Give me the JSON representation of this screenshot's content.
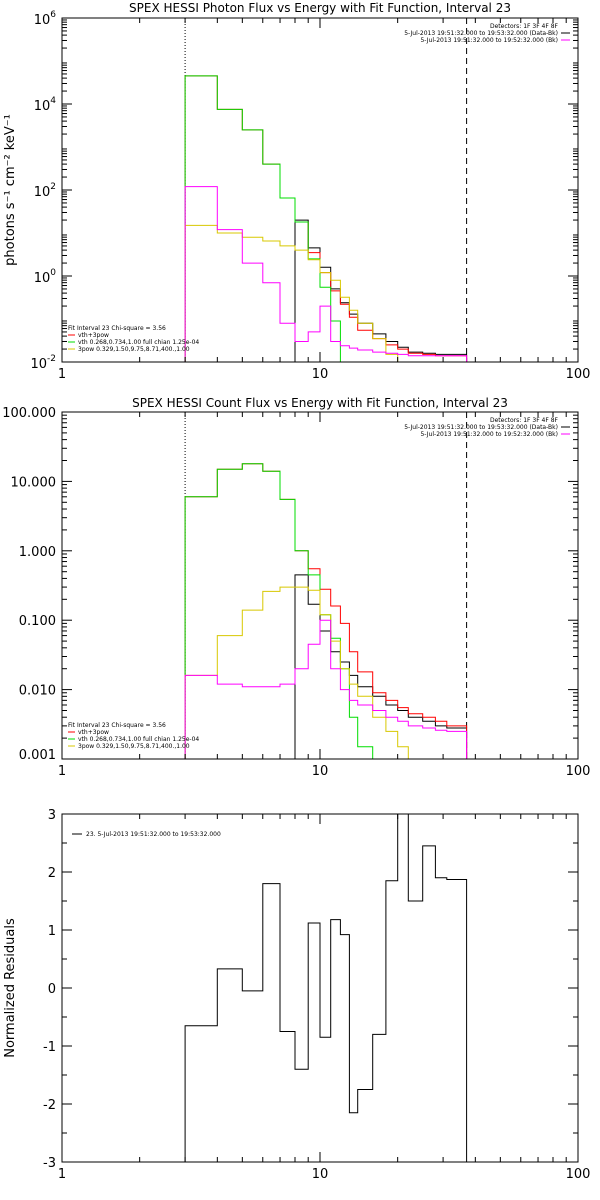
{
  "chart_data": [
    {
      "type": "line",
      "title": "SPEX HESSI Photon Flux vs Energy with Fit Function, Interval 23",
      "xlabel": "",
      "ylabel": "photons s⁻¹ cm⁻² keV⁻¹",
      "xscale": "log",
      "yscale": "log",
      "xlim": [
        1,
        100
      ],
      "ylim": [
        0.01,
        1000000
      ],
      "x_ticks": [
        {
          "v": 1,
          "label": "1"
        },
        {
          "v": 10,
          "label": "10"
        },
        {
          "v": 100,
          "label": "100"
        }
      ],
      "y_ticks": [
        {
          "v": 0.01,
          "label": "10",
          "sup": "-2"
        },
        {
          "v": 1,
          "label": "10",
          "sup": "0"
        },
        {
          "v": 100,
          "label": "10",
          "sup": "2"
        },
        {
          "v": 10000,
          "label": "10",
          "sup": "4"
        },
        {
          "v": 1000000,
          "label": "10",
          "sup": "6"
        }
      ],
      "vlines": [
        {
          "x": 3.0,
          "style": "dotted"
        },
        {
          "x": 37.0,
          "style": "dashed"
        }
      ],
      "bin_edges": [
        3.0,
        4.0,
        5.0,
        6.0,
        7.0,
        8.0,
        9.0,
        10.0,
        11.0,
        12.0,
        13.0,
        14.0,
        16.0,
        18.0,
        20.0,
        22.0,
        25.0,
        28.0,
        31.0,
        37.0
      ],
      "series": [
        {
          "name": "",
          "color": "#000000",
          "values": [
            0.01,
            0.01,
            0.01,
            0.01,
            0.01,
            20,
            4.5,
            1.6,
            0.5,
            0.24,
            0.13,
            0.08,
            0.045,
            0.03,
            0.022,
            0.017,
            0.016,
            0.015,
            0.015
          ]
        },
        {
          "name": "vth+3pow",
          "color": "#ff0000",
          "values": [
            45000,
            7500,
            2500,
            400,
            65,
            18,
            3.5,
            1.2,
            0.45,
            0.22,
            0.11,
            0.055,
            0.035,
            0.025,
            0.02,
            0.016,
            0.015,
            0.014,
            0.014
          ]
        },
        {
          "name": "vth 0.268,0.734,1.00 full chian 1.25e-04",
          "color": "#00dd00",
          "values": [
            45000,
            7500,
            2500,
            400,
            65,
            18,
            2.5,
            0.55,
            0.09,
            0.01,
            0.001,
            null,
            null,
            null,
            null,
            null,
            null,
            null,
            null
          ]
        },
        {
          "name": "3pow 0.329,1.50,9.75,8.71,400.,1.00",
          "color": "#d8c800",
          "values": [
            15,
            10,
            8,
            6.5,
            5.0,
            4.0,
            2.4,
            1.2,
            0.8,
            0.32,
            0.16,
            0.08,
            0.035,
            0.015,
            0.01,
            0.005,
            null,
            null,
            null
          ]
        },
        {
          "name": "",
          "color": "#ff00ff",
          "values": [
            120,
            12,
            2,
            0.7,
            0.08,
            0.03,
            0.05,
            0.2,
            0.03,
            0.024,
            0.021,
            0.019,
            0.017,
            0.016,
            0.015,
            0.014,
            0.014,
            0.014,
            0.014
          ]
        }
      ],
      "legend": {
        "placement": "top-right",
        "header": "Detectors: 1F 3F 4F 8F",
        "rows": [
          {
            "text": "5-Jul-2013 19:51:32.000 to 19:53:32.000 (Data-Bk)",
            "color": "#000000"
          },
          {
            "text": "5-Jul-2013 19:51:32.000 to 19:52:32.000 (Bk)",
            "color": "#ff00ff"
          }
        ]
      },
      "fit_legend": {
        "placement": "bottom-left",
        "header": "Fit Interval 23   Chi-square = 3.56",
        "rows": [
          {
            "text": "vth+3pow",
            "color": "#ff0000"
          },
          {
            "text": "vth 0.268,0.734,1.00 full chian 1.25e-04",
            "color": "#00dd00"
          },
          {
            "text": "3pow 0.329,1.50,9.75,8.71,400.,1.00",
            "color": "#d8c800"
          }
        ]
      }
    },
    {
      "type": "line",
      "title": "SPEX HESSI Count Flux vs Energy with Fit Function, Interval 23",
      "xlabel": "",
      "ylabel": "",
      "xscale": "log",
      "yscale": "log",
      "xlim": [
        1,
        100
      ],
      "ylim": [
        0.001,
        100
      ],
      "x_ticks": [
        {
          "v": 1,
          "label": "1"
        },
        {
          "v": 10,
          "label": "10"
        },
        {
          "v": 100,
          "label": "100"
        }
      ],
      "y_ticks": [
        {
          "v": 0.001,
          "label": "0.001"
        },
        {
          "v": 0.01,
          "label": "0.010"
        },
        {
          "v": 0.1,
          "label": "0.100"
        },
        {
          "v": 1,
          "label": "1.000"
        },
        {
          "v": 10,
          "label": "10.000"
        },
        {
          "v": 100,
          "label": "100.000"
        }
      ],
      "vlines": [
        {
          "x": 3.0,
          "style": "dotted"
        },
        {
          "x": 37.0,
          "style": "dashed"
        }
      ],
      "bin_edges": [
        3.0,
        4.0,
        5.0,
        6.0,
        7.0,
        8.0,
        9.0,
        10.0,
        11.0,
        12.0,
        13.0,
        14.0,
        16.0,
        18.0,
        20.0,
        22.0,
        25.0,
        28.0,
        31.0,
        37.0
      ],
      "series": [
        {
          "name": "",
          "color": "#000000",
          "values": [
            0.001,
            0.001,
            0.001,
            0.001,
            0.001,
            0.45,
            0.17,
            0.07,
            0.035,
            0.025,
            0.016,
            0.011,
            0.008,
            0.006,
            0.005,
            0.004,
            0.0035,
            0.003,
            0.0028
          ]
        },
        {
          "name": "vth+3pow",
          "color": "#ff0000",
          "values": [
            6,
            15,
            18,
            14,
            5.5,
            1.0,
            0.55,
            0.28,
            0.16,
            0.09,
            0.035,
            0.018,
            0.009,
            0.007,
            0.0055,
            0.0045,
            0.004,
            0.0035,
            0.003
          ]
        },
        {
          "name": "vth 0.268,0.734,1.00 full chian 1.25e-04",
          "color": "#00dd00",
          "values": [
            6,
            15,
            18,
            14,
            5.5,
            1.0,
            0.45,
            0.12,
            0.055,
            0.02,
            0.004,
            0.0015,
            null,
            null,
            null,
            null,
            null,
            null,
            null
          ]
        },
        {
          "name": "3pow 0.329,1.50,9.75,8.71,400.,1.00",
          "color": "#d8c800",
          "values": [
            0.016,
            0.06,
            0.14,
            0.26,
            0.3,
            0.3,
            0.27,
            0.12,
            0.05,
            0.02,
            0.012,
            0.008,
            0.004,
            0.0025,
            0.0015,
            0.001,
            null,
            null,
            null
          ]
        },
        {
          "name": "",
          "color": "#ff00ff",
          "values": [
            0.016,
            0.012,
            0.011,
            0.011,
            0.012,
            0.02,
            0.045,
            0.1,
            0.02,
            0.01,
            0.007,
            0.006,
            0.005,
            0.004,
            0.0035,
            0.003,
            0.0028,
            0.0026,
            0.0025
          ]
        }
      ],
      "legend": {
        "placement": "top-right",
        "header": "Detectors: 1F 3F 4F 8F",
        "rows": [
          {
            "text": "5-Jul-2013 19:51:32.000 to 19:53:32.000 (Data-Bk)",
            "color": "#000000"
          },
          {
            "text": "5-Jul-2013 19:51:32.000 to 19:52:32.000 (Bk)",
            "color": "#ff00ff"
          }
        ]
      },
      "fit_legend": {
        "placement": "bottom-left",
        "header": "Fit Interval 23   Chi-square = 3.56",
        "rows": [
          {
            "text": "vth+3pow",
            "color": "#ff0000"
          },
          {
            "text": "vth 0.268,0.734,1.00 full chian 1.25e-04",
            "color": "#00dd00"
          },
          {
            "text": "3pow 0.329,1.50,9.75,8.71,400.,1.00",
            "color": "#d8c800"
          }
        ]
      }
    },
    {
      "type": "line",
      "title": "",
      "xlabel": "",
      "ylabel": "Normalized Residuals",
      "xscale": "log",
      "yscale": "linear",
      "xlim": [
        1,
        100
      ],
      "ylim": [
        -3,
        3
      ],
      "x_ticks": [
        {
          "v": 1,
          "label": "1"
        },
        {
          "v": 10,
          "label": "10"
        },
        {
          "v": 100,
          "label": "100"
        }
      ],
      "y_ticks": [
        {
          "v": -3,
          "label": "-3"
        },
        {
          "v": -2,
          "label": "-2"
        },
        {
          "v": -1,
          "label": "-1"
        },
        {
          "v": 0,
          "label": "0"
        },
        {
          "v": 1,
          "label": "1"
        },
        {
          "v": 2,
          "label": "2"
        },
        {
          "v": 3,
          "label": "3"
        }
      ],
      "vlines": [],
      "bin_edges": [
        3.0,
        4.0,
        5.0,
        6.0,
        7.0,
        8.0,
        9.0,
        10.0,
        11.0,
        12.0,
        13.0,
        14.0,
        16.0,
        18.0,
        20.0,
        22.0,
        25.0,
        28.0,
        31.0,
        37.0
      ],
      "series": [
        {
          "name": "23.  5-Jul-2013 19:51:32.000 to 19:53:32.000",
          "color": "#000000",
          "values": [
            -0.65,
            0.33,
            -0.05,
            1.8,
            -0.75,
            -1.4,
            1.12,
            -0.85,
            1.18,
            0.92,
            -2.15,
            -1.75,
            -0.8,
            1.85,
            3.0,
            1.5,
            2.45,
            1.9,
            1.87
          ]
        }
      ],
      "legend": {
        "placement": "top-left",
        "header": "",
        "rows": [
          {
            "text": "23.  5-Jul-2013 19:51:32.000 to 19:53:32.000",
            "color": "#000000"
          }
        ]
      },
      "fit_legend": null
    }
  ]
}
